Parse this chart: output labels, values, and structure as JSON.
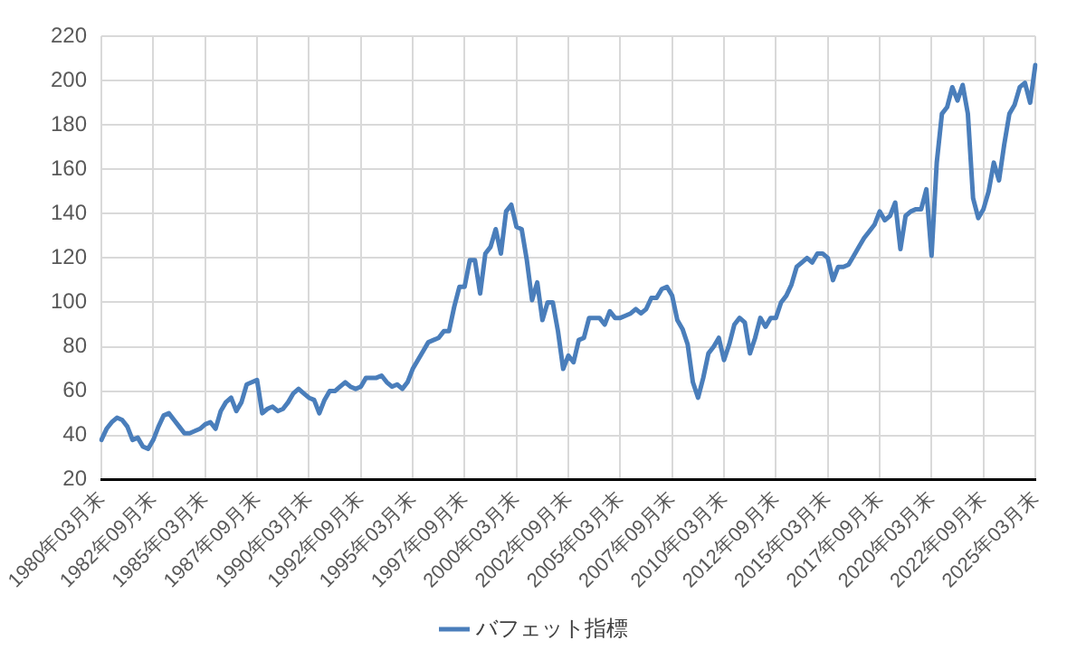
{
  "chart_data": {
    "type": "line",
    "categories": [
      "1980年03月末",
      null,
      null,
      null,
      null,
      null,
      null,
      null,
      null,
      null,
      "1982年09月末",
      null,
      null,
      null,
      null,
      null,
      null,
      null,
      null,
      null,
      "1985年03月末",
      null,
      null,
      null,
      null,
      null,
      null,
      null,
      null,
      null,
      "1987年09月末",
      null,
      null,
      null,
      null,
      null,
      null,
      null,
      null,
      null,
      "1990年03月末",
      null,
      null,
      null,
      null,
      null,
      null,
      null,
      null,
      null,
      "1992年09月末",
      null,
      null,
      null,
      null,
      null,
      null,
      null,
      null,
      null,
      "1995年03月末",
      null,
      null,
      null,
      null,
      null,
      null,
      null,
      null,
      null,
      "1997年09月末",
      null,
      null,
      null,
      null,
      null,
      null,
      null,
      null,
      null,
      "2000年03月末",
      null,
      null,
      null,
      null,
      null,
      null,
      null,
      null,
      null,
      "2002年09月末",
      null,
      null,
      null,
      null,
      null,
      null,
      null,
      null,
      null,
      "2005年03月末",
      null,
      null,
      null,
      null,
      null,
      null,
      null,
      null,
      null,
      "2007年09月末",
      null,
      null,
      null,
      null,
      null,
      null,
      null,
      null,
      null,
      "2010年03月末",
      null,
      null,
      null,
      null,
      null,
      null,
      null,
      null,
      null,
      "2012年09月末",
      null,
      null,
      null,
      null,
      null,
      null,
      null,
      null,
      null,
      "2015年03月末",
      null,
      null,
      null,
      null,
      null,
      null,
      null,
      null,
      null,
      "2017年09月末",
      null,
      null,
      null,
      null,
      null,
      null,
      null,
      null,
      null,
      "2020年03月末",
      null,
      null,
      null,
      null,
      null,
      null,
      null,
      null,
      null,
      "2022年09月末",
      null,
      null,
      null,
      null,
      null,
      null,
      null,
      null,
      null,
      "2025年03月末"
    ],
    "series": [
      {
        "name": "バフェット指標",
        "color": "#4a7ebb",
        "values": [
          38,
          43,
          46,
          48,
          47,
          44,
          38,
          39,
          35,
          34,
          38,
          44,
          49,
          50,
          47,
          44,
          41,
          41,
          42,
          43,
          45,
          46,
          43,
          51,
          55,
          57,
          51,
          55,
          63,
          64,
          65,
          50,
          52,
          53,
          51,
          52,
          55,
          59,
          61,
          59,
          57,
          56,
          50,
          56,
          60,
          60,
          62,
          64,
          62,
          61,
          62,
          66,
          66,
          66,
          67,
          64,
          62,
          63,
          61,
          64,
          70,
          74,
          78,
          82,
          83,
          84,
          87,
          87,
          98,
          107,
          107,
          119,
          119,
          104,
          122,
          125,
          133,
          122,
          141,
          144,
          134,
          133,
          119,
          101,
          109,
          92,
          100,
          100,
          87,
          70,
          76,
          73,
          83,
          84,
          93,
          93,
          93,
          90,
          96,
          93,
          93,
          94,
          95,
          97,
          95,
          97,
          102,
          102,
          106,
          107,
          103,
          92,
          88,
          81,
          64,
          57,
          66,
          77,
          80,
          84,
          74,
          81,
          90,
          93,
          91,
          77,
          84,
          93,
          89,
          93,
          93,
          100,
          103,
          108,
          116,
          118,
          120,
          118,
          122,
          122,
          120,
          110,
          116,
          116,
          117,
          121,
          125,
          129,
          132,
          135,
          141,
          137,
          139,
          145,
          124,
          139,
          141,
          142,
          142,
          151,
          121,
          163,
          185,
          188,
          197,
          191,
          198,
          185,
          147,
          138,
          142,
          150,
          163,
          155,
          171,
          185,
          189,
          197,
          199,
          190,
          207
        ]
      }
    ],
    "ylim": [
      20,
      220
    ],
    "yticks": [
      20,
      40,
      60,
      80,
      100,
      120,
      140,
      160,
      180,
      200,
      220
    ],
    "grid": true,
    "legend": "bottom",
    "marker": "none"
  }
}
